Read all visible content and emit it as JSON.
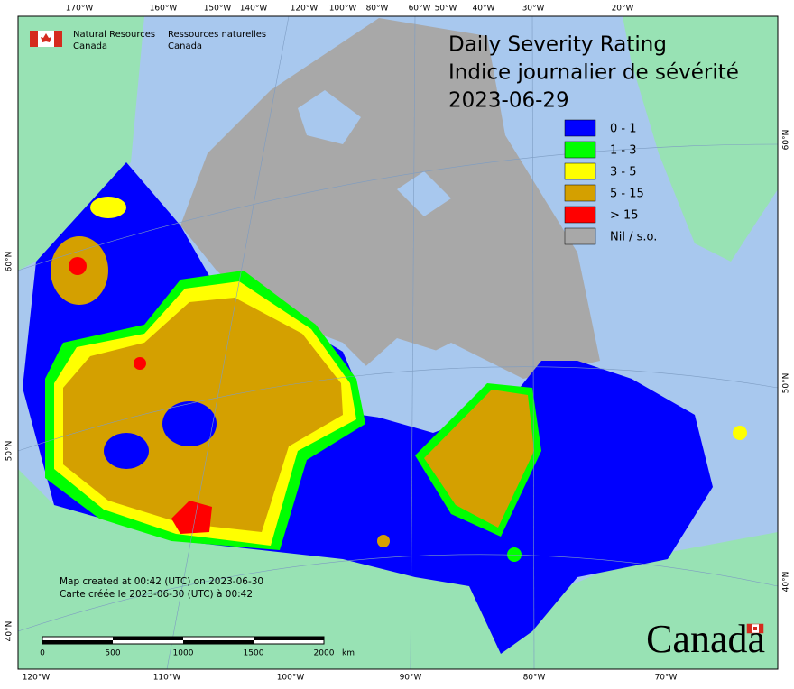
{
  "header": {
    "agency_en": [
      "Natural Resources",
      "Canada"
    ],
    "agency_fr": [
      "Ressources naturelles",
      "Canada"
    ]
  },
  "title": [
    "Daily Severity Rating",
    "Indice journalier de sévérité",
    "2023-06-29"
  ],
  "legend": [
    {
      "label": "0 - 1",
      "color": "#0000ff"
    },
    {
      "label": "1 - 3",
      "color": "#00ff00"
    },
    {
      "label": "3 - 5",
      "color": "#ffff00"
    },
    {
      "label": "5 - 15",
      "color": "#d4a000"
    },
    {
      "label": "> 15",
      "color": "#ff0000"
    },
    {
      "label": "Nil / s.o.",
      "color": "#a8a8a8"
    }
  ],
  "top_longitudes": [
    "170°W",
    "160°W",
    "150°W",
    "140°W",
    "120°W",
    "100°W",
    "80°W",
    "60°W",
    "50°W",
    "40°W",
    "30°W",
    "20°W"
  ],
  "bottom_longitudes": [
    "120°W",
    "110°W",
    "100°W",
    "90°W",
    "80°W",
    "70°W"
  ],
  "left_latitudes": [
    "60°N",
    "50°N",
    "40°N"
  ],
  "right_latitudes": [
    "60°N",
    "50°N",
    "40°N"
  ],
  "scale_bar": {
    "labels": [
      "0",
      "500",
      "1000",
      "1500",
      "2000"
    ],
    "unit": "km"
  },
  "notes": [
    "Map created at 00:42 (UTC) on 2023-06-30",
    "Carte créée le 2023-06-30 (UTC) à 00:42"
  ],
  "wordmark": "Canada"
}
